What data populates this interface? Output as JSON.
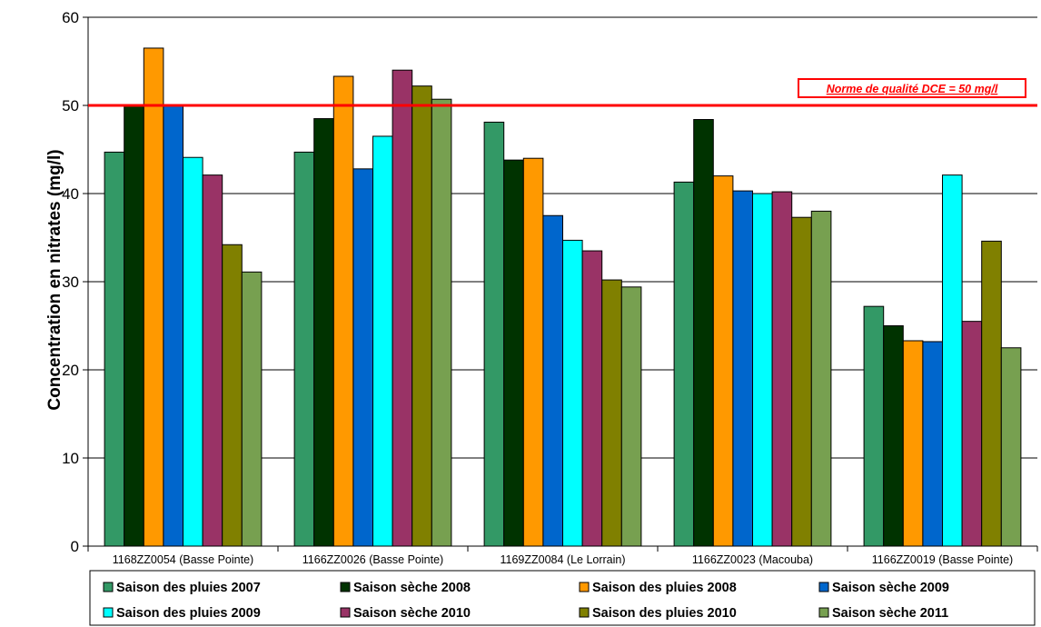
{
  "chart_data": {
    "type": "bar",
    "title": "",
    "xlabel": "",
    "ylabel": "Concentration en nitrates (mg/l)",
    "ylim": [
      0,
      60
    ],
    "yticks": [
      0,
      10,
      20,
      30,
      40,
      50,
      60
    ],
    "grid": true,
    "legend_position": "bottom",
    "categories": [
      "1168ZZ0054 (Basse Pointe)",
      "1166ZZ0026 (Basse Pointe)",
      "1169ZZ0084 (Le Lorrain)",
      "1166ZZ0023 (Macouba)",
      "1166ZZ0019 (Basse Pointe)"
    ],
    "series": [
      {
        "name": "Saison des pluies 2007",
        "color": "#339966",
        "values": [
          44.7,
          44.7,
          48.1,
          41.3,
          27.2
        ]
      },
      {
        "name": "Saison sèche 2008",
        "color": "#003300",
        "values": [
          50.0,
          48.5,
          43.8,
          48.4,
          25.0
        ]
      },
      {
        "name": "Saison des pluies 2008",
        "color": "#ff9900",
        "values": [
          56.5,
          53.3,
          44.0,
          42.0,
          23.3
        ]
      },
      {
        "name": "Saison sèche 2009",
        "color": "#0066cc",
        "values": [
          49.9,
          42.8,
          37.5,
          40.3,
          23.2
        ]
      },
      {
        "name": "Saison des pluies 2009",
        "color": "#00ffff",
        "values": [
          44.1,
          46.5,
          34.7,
          40.0,
          42.1
        ]
      },
      {
        "name": "Saison sèche 2010",
        "color": "#993366",
        "values": [
          42.1,
          54.0,
          33.5,
          40.2,
          25.5
        ]
      },
      {
        "name": "Saison des pluies 2010",
        "color": "#808000",
        "values": [
          34.2,
          52.2,
          30.2,
          37.3,
          34.6
        ]
      },
      {
        "name": "Saison sèche 2011",
        "color": "#77a050",
        "values": [
          31.1,
          50.7,
          29.4,
          38.0,
          22.5
        ]
      }
    ],
    "reference_line": {
      "value": 50,
      "color": "#ff0000",
      "label": "Norme de qualité DCE = 50 mg/l"
    }
  }
}
